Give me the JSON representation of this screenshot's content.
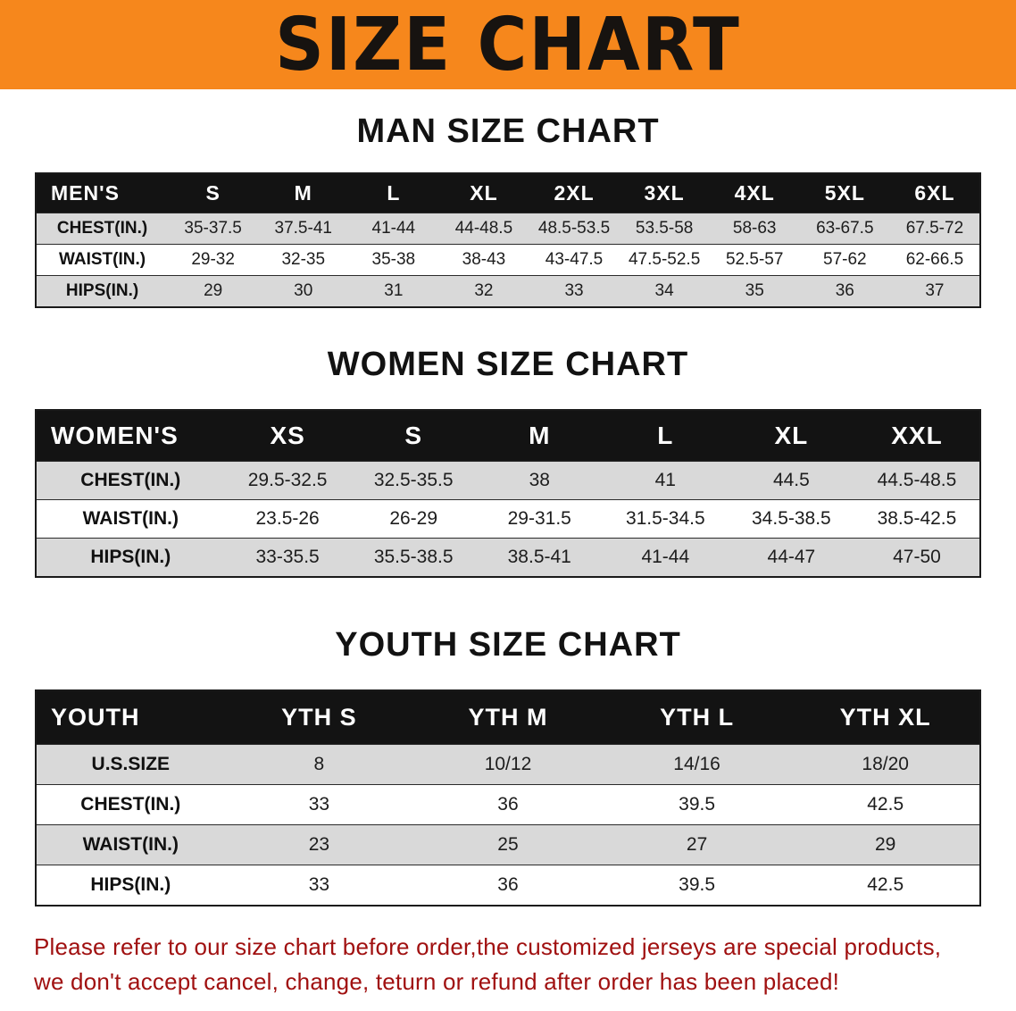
{
  "banner": {
    "title": "SIZE CHART"
  },
  "colors": {
    "banner_bg": "#F6871C",
    "header_bg": "#131313",
    "row_alt": "#D9D9D9",
    "border": "#1A1A1A",
    "disclaimer": "#A01010"
  },
  "sections": [
    {
      "heading": "MAN SIZE CHART"
    },
    {
      "heading": "WOMEN SIZE CHART"
    },
    {
      "heading": "YOUTH SIZE CHART"
    }
  ],
  "chart_data": [
    {
      "type": "table",
      "title": "MAN SIZE CHART",
      "columns": [
        "MEN'S",
        "S",
        "M",
        "L",
        "XL",
        "2XL",
        "3XL",
        "4XL",
        "5XL",
        "6XL"
      ],
      "rows": [
        [
          "CHEST(IN.)",
          "35-37.5",
          "37.5-41",
          "41-44",
          "44-48.5",
          "48.5-53.5",
          "53.5-58",
          "58-63",
          "63-67.5",
          "67.5-72"
        ],
        [
          "WAIST(IN.)",
          "29-32",
          "32-35",
          "35-38",
          "38-43",
          "43-47.5",
          "47.5-52.5",
          "52.5-57",
          "57-62",
          "62-66.5"
        ],
        [
          "HIPS(IN.)",
          "29",
          "30",
          "31",
          "32",
          "33",
          "34",
          "35",
          "36",
          "37"
        ]
      ],
      "layout": {
        "header_bg": "black",
        "row_shading": "alternate-gray"
      }
    },
    {
      "type": "table",
      "title": "WOMEN SIZE CHART",
      "columns": [
        "WOMEN'S",
        "XS",
        "S",
        "M",
        "L",
        "XL",
        "XXL"
      ],
      "rows": [
        [
          "CHEST(IN.)",
          "29.5-32.5",
          "32.5-35.5",
          "38",
          "41",
          "44.5",
          "44.5-48.5"
        ],
        [
          "WAIST(IN.)",
          "23.5-26",
          "26-29",
          "29-31.5",
          "31.5-34.5",
          "34.5-38.5",
          "38.5-42.5"
        ],
        [
          "HIPS(IN.)",
          "33-35.5",
          "35.5-38.5",
          "38.5-41",
          "41-44",
          "44-47",
          "47-50"
        ]
      ],
      "layout": {
        "header_bg": "black",
        "row_shading": "alternate-gray"
      }
    },
    {
      "type": "table",
      "title": "YOUTH SIZE CHART",
      "columns": [
        "YOUTH",
        "YTH S",
        "YTH M",
        "YTH L",
        "YTH XL"
      ],
      "rows": [
        [
          "U.S.SIZE",
          "8",
          "10/12",
          "14/16",
          "18/20"
        ],
        [
          "CHEST(IN.)",
          "33",
          "36",
          "39.5",
          "42.5"
        ],
        [
          "WAIST(IN.)",
          "23",
          "25",
          "27",
          "29"
        ],
        [
          "HIPS(IN.)",
          "33",
          "36",
          "39.5",
          "42.5"
        ]
      ],
      "layout": {
        "header_bg": "black",
        "row_shading": "alternate-gray"
      }
    }
  ],
  "disclaimer": {
    "lines": [
      "Please refer to our size chart before order,the customized jerseys are special products,",
      "we don't accept cancel, change, teturn or refund after order has been placed!"
    ]
  }
}
